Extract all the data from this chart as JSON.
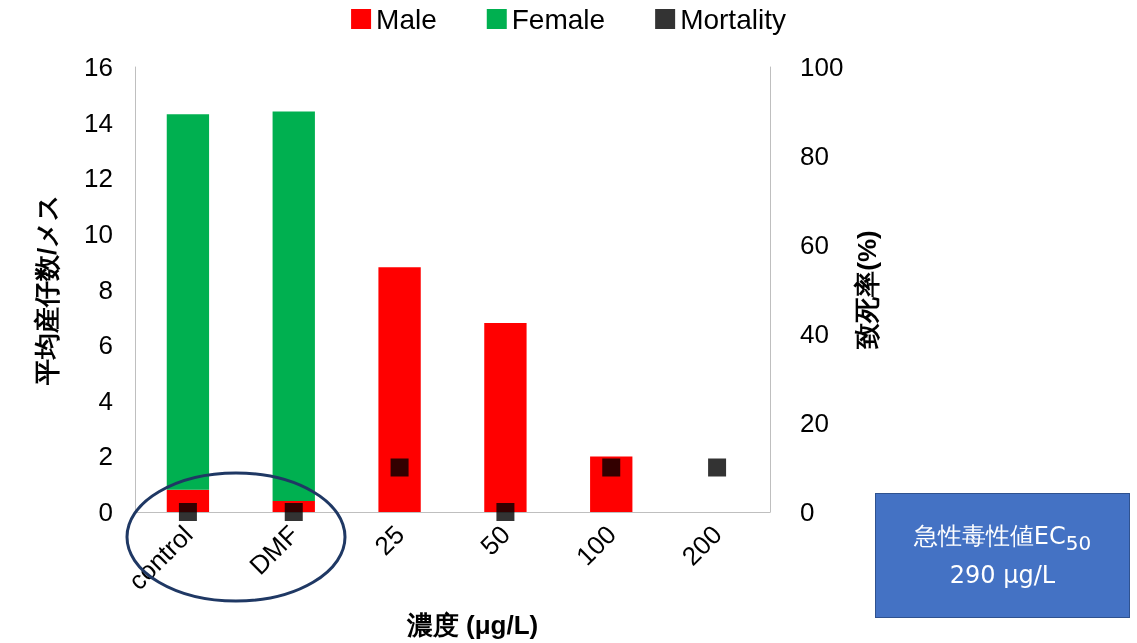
{
  "chart_data": {
    "type": "bar",
    "stacked": true,
    "categories": [
      "control",
      "DMF",
      "25",
      "50",
      "100",
      "200"
    ],
    "xlabel": "濃度 (μg/L)",
    "ylabel": "平均産仔数/メス",
    "y2label": "致死率(%)",
    "series": [
      {
        "name": "Male",
        "color": "#ff0000",
        "values": [
          0.8,
          0.4,
          8.8,
          6.8,
          2.0,
          0
        ]
      },
      {
        "name": "Female",
        "color": "#00b050",
        "values": [
          13.5,
          14.0,
          0,
          0,
          0,
          0
        ]
      },
      {
        "name": "Mortality",
        "type": "scatter",
        "axis": "y2",
        "marker": "square",
        "color": "#000000",
        "x": [
          "control",
          "DMF",
          "25",
          "50",
          "100",
          "200"
        ],
        "values": [
          0,
          0,
          10,
          0,
          10,
          10
        ]
      }
    ],
    "ylim": [
      0,
      16
    ],
    "yticks": [
      0,
      2,
      4,
      6,
      8,
      10,
      12,
      14,
      16
    ],
    "y2lim": [
      0,
      100
    ],
    "y2ticks": [
      0,
      20,
      40,
      60,
      80,
      100
    ],
    "grid": false,
    "legend": "top",
    "annotations": [
      "急性毒性値EC$_{50}$\n290 μg/L"
    ]
  }
}
